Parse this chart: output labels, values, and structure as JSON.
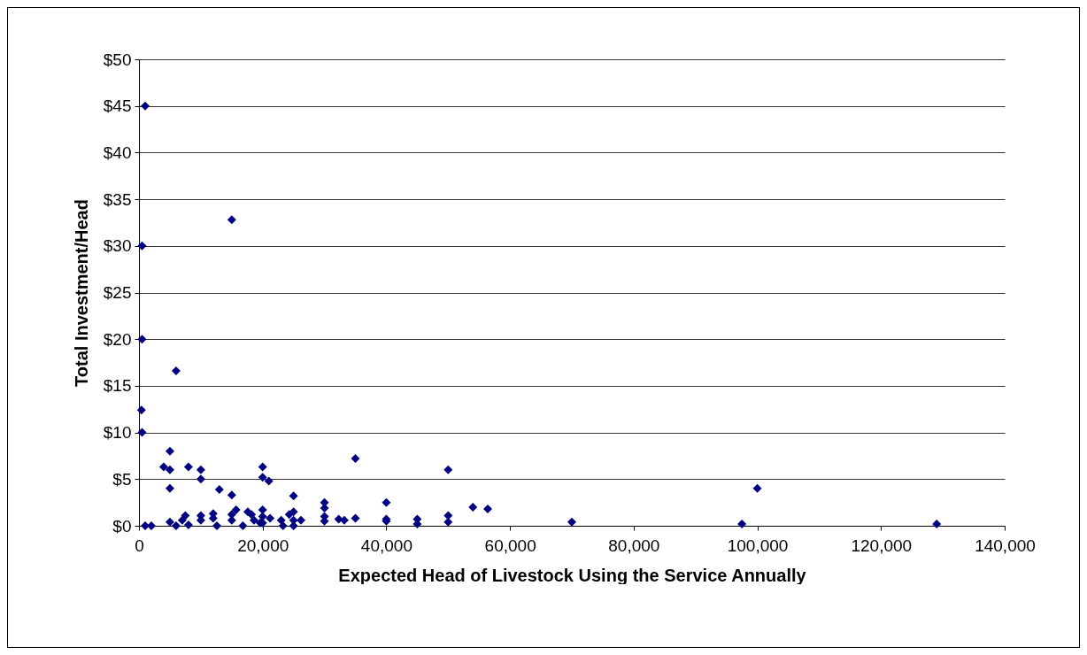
{
  "chart_data": {
    "type": "scatter",
    "xlabel": "Expected Head of Livestock Using the Service Annually",
    "ylabel": "Total Investment/Head",
    "xlim": [
      0,
      140000
    ],
    "ylim": [
      0,
      50
    ],
    "xticks": [
      0,
      {
        "value": 20000,
        "label": "20,000"
      },
      {
        "value": 40000,
        "label": "40,000"
      },
      {
        "value": 60000,
        "label": "60,000"
      },
      {
        "value": 80000,
        "label": "80,000"
      },
      {
        "value": 100000,
        "label": "100,000"
      },
      {
        "value": 120000,
        "label": "120,000"
      },
      {
        "value": 140000,
        "label": "140,000"
      }
    ],
    "yticks": [
      {
        "value": 0,
        "label": "$0"
      },
      {
        "value": 5,
        "label": "$5"
      },
      {
        "value": 10,
        "label": "$10"
      },
      {
        "value": 15,
        "label": "$15"
      },
      {
        "value": 20,
        "label": "$20"
      },
      {
        "value": 25,
        "label": "$25"
      },
      {
        "value": 30,
        "label": "$30"
      },
      {
        "value": 35,
        "label": "$35"
      },
      {
        "value": 40,
        "label": "$40"
      },
      {
        "value": 45,
        "label": "$45"
      },
      {
        "value": 50,
        "label": "$50"
      }
    ],
    "grid": "y",
    "marker": "diamond",
    "series": [
      {
        "color": "#000080",
        "x": [
          1000,
          15000,
          500,
          500,
          6000,
          400,
          500,
          5000,
          4000,
          5000,
          8000,
          10000,
          10000,
          5000,
          13000,
          15000,
          20000,
          20000,
          21000,
          25000,
          1000,
          2000,
          5000,
          6000,
          7000,
          7500,
          8000,
          10000,
          10000,
          12000,
          12000,
          12600,
          15000,
          15000,
          15700,
          16800,
          17600,
          18200,
          18600,
          19600,
          20000,
          20000,
          20000,
          21200,
          23000,
          23300,
          24300,
          25000,
          25000,
          25000,
          26200,
          30000,
          30000,
          30000,
          30000,
          32300,
          33200,
          35000,
          35000,
          40000,
          40000,
          40000,
          45000,
          45000,
          50000,
          50000,
          50000,
          54000,
          56400,
          70000,
          97500,
          100000,
          129000
        ],
        "values": [
          45,
          32.8,
          30,
          20,
          16.6,
          12.4,
          10,
          8,
          6.3,
          6,
          6.3,
          6,
          5,
          4,
          3.9,
          3.3,
          6.3,
          5.2,
          4.8,
          3.2,
          0,
          0,
          0.4,
          0,
          0.6,
          1.1,
          0.1,
          1.1,
          0.6,
          1.3,
          0.8,
          0,
          1.2,
          0.6,
          1.7,
          0,
          1.5,
          1.2,
          0.6,
          0.3,
          1.7,
          1,
          0.3,
          0.8,
          0.6,
          0,
          1.2,
          1.5,
          0.6,
          0,
          0.6,
          2.5,
          1.9,
          1,
          0.5,
          0.7,
          0.6,
          7.2,
          0.8,
          2.5,
          0.7,
          0.5,
          0.7,
          0.2,
          6,
          1.1,
          0.4,
          2,
          1.8,
          0.4,
          0.2,
          4,
          0.2
        ]
      }
    ]
  }
}
